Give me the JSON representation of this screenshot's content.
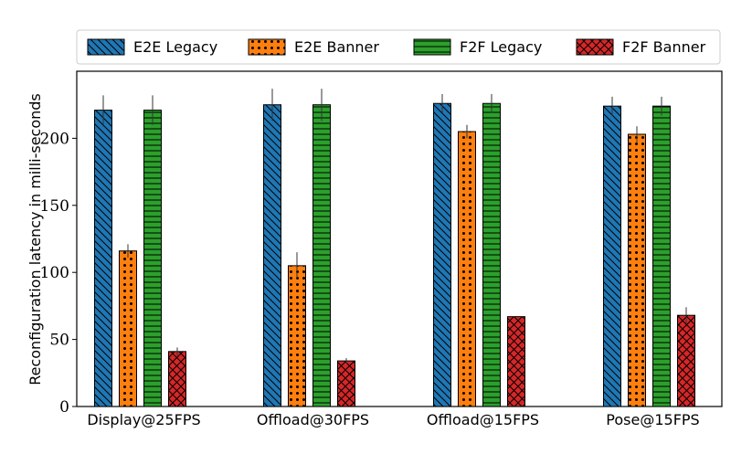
{
  "chart_data": {
    "type": "bar",
    "categories": [
      "Display@25FPS",
      "Offload@30FPS",
      "Offload@15FPS",
      "Pose@15FPS"
    ],
    "series": [
      {
        "name": "E2E Legacy",
        "values": [
          221,
          225,
          226,
          224
        ],
        "errors": [
          11,
          12,
          7,
          7
        ],
        "color": "#1f77b4",
        "pattern": "diagonal-hatch"
      },
      {
        "name": "E2E Banner",
        "values": [
          116,
          105,
          205,
          203
        ],
        "errors": [
          5,
          10,
          5,
          6
        ],
        "color": "#ff7f0e",
        "pattern": "dots"
      },
      {
        "name": "F2F Legacy",
        "values": [
          221,
          225,
          226,
          224
        ],
        "errors": [
          11,
          12,
          7,
          7
        ],
        "color": "#2ca02c",
        "pattern": "horizontal-lines"
      },
      {
        "name": "F2F Banner",
        "values": [
          41,
          34,
          67,
          68
        ],
        "errors": [
          3,
          2,
          0,
          6
        ],
        "color": "#d62728",
        "pattern": "crosshatch"
      }
    ],
    "ylabel": "Reconfiguration latency in milli-seconds",
    "xlabel": "",
    "ylim": [
      0,
      250
    ],
    "yticks": [
      0,
      50,
      100,
      150,
      200
    ],
    "legend_position": "top",
    "grid": false
  }
}
